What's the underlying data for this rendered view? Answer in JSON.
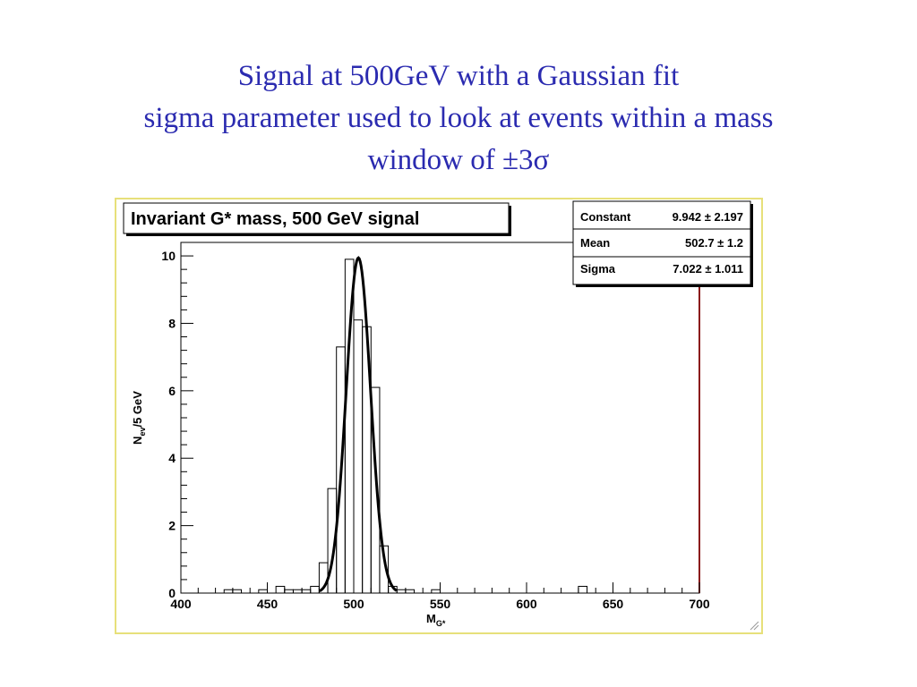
{
  "slide": {
    "title_line1": "Signal at 500GeV with a Gaussian fit",
    "title_line2": "sigma parameter used to look at events within a mass",
    "title_line3": "window of ±3σ"
  },
  "chart_data": {
    "type": "histogram",
    "title": "Invariant G* mass, 500 GeV signal",
    "xlabel": "M",
    "xlabel_sub": "G*",
    "ylabel": "N",
    "ylabel_sub": "ev",
    "ylabel_suffix": "/5 GeV",
    "xlim": [
      400,
      700
    ],
    "ylim": [
      0,
      10.4
    ],
    "x_ticks": [
      400,
      450,
      500,
      550,
      600,
      650,
      700
    ],
    "y_ticks": [
      0,
      2,
      4,
      6,
      8,
      10
    ],
    "bin_width": 5,
    "bins": [
      {
        "x": 425,
        "y": 0.1
      },
      {
        "x": 430,
        "y": 0.1
      },
      {
        "x": 445,
        "y": 0.1
      },
      {
        "x": 455,
        "y": 0.2
      },
      {
        "x": 460,
        "y": 0.1
      },
      {
        "x": 465,
        "y": 0.1
      },
      {
        "x": 470,
        "y": 0.1
      },
      {
        "x": 475,
        "y": 0.2
      },
      {
        "x": 480,
        "y": 0.9
      },
      {
        "x": 485,
        "y": 3.1
      },
      {
        "x": 490,
        "y": 7.3
      },
      {
        "x": 495,
        "y": 9.9
      },
      {
        "x": 500,
        "y": 8.1
      },
      {
        "x": 505,
        "y": 7.9
      },
      {
        "x": 510,
        "y": 6.1
      },
      {
        "x": 515,
        "y": 1.4
      },
      {
        "x": 520,
        "y": 0.2
      },
      {
        "x": 525,
        "y": 0.1
      },
      {
        "x": 530,
        "y": 0.1
      },
      {
        "x": 545,
        "y": 0.1
      },
      {
        "x": 630,
        "y": 0.2
      }
    ],
    "fit": {
      "type": "gaussian",
      "constant": 9.942,
      "mean": 502.7,
      "sigma": 7.022
    },
    "stats": [
      {
        "label": "Constant",
        "value": "9.942",
        "error": "2.197"
      },
      {
        "label": "Mean",
        "value": "502.7",
        "error": "1.2"
      },
      {
        "label": "Sigma",
        "value": "7.022",
        "error": "1.011"
      }
    ],
    "stats_pm": "±",
    "colors": {
      "title_text": "#2b2bb0",
      "frame_border": "#e7e07a",
      "right_axis": "#8b1a1a",
      "hist": "#000000",
      "fit": "#000000"
    }
  }
}
